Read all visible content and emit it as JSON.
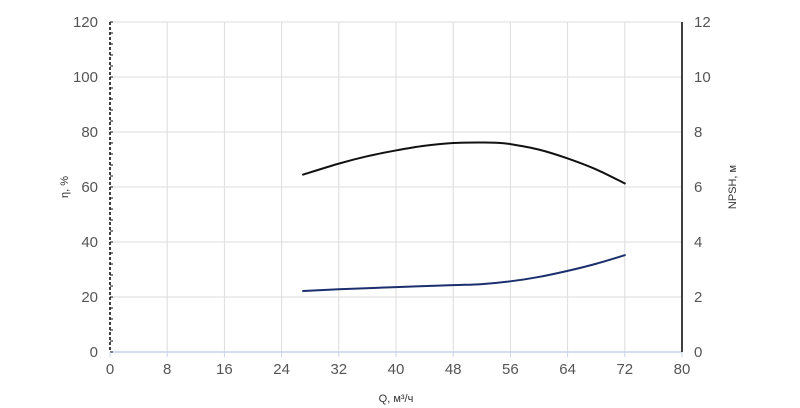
{
  "chart_data": {
    "type": "line",
    "xlabel": "Q, м³/ч",
    "ylabel_left": "η, %",
    "ylabel_right": "NPSH, м",
    "x_ticks": [
      "0",
      "8",
      "16",
      "24",
      "32",
      "40",
      "48",
      "56",
      "64",
      "72",
      "80"
    ],
    "y_left_ticks": [
      "0",
      "20",
      "40",
      "60",
      "80",
      "100",
      "120"
    ],
    "y_right_ticks": [
      "0",
      "2",
      "4",
      "6",
      "8",
      "10",
      "12"
    ],
    "xlim": [
      0,
      80
    ],
    "ylim_left": [
      0,
      120
    ],
    "ylim_right": [
      0,
      12
    ],
    "grid": true,
    "series": [
      {
        "axis": "left",
        "color": "#111111",
        "x": [
          27,
          32,
          36,
          40,
          44,
          48,
          52,
          54,
          56,
          60,
          64,
          68,
          72
        ],
        "y": [
          64.5,
          68.5,
          71.2,
          73.3,
          75.0,
          76.0,
          76.2,
          76.1,
          75.6,
          73.6,
          70.4,
          66.4,
          61.3
        ]
      },
      {
        "axis": "right",
        "color": "#1b2f6e",
        "x": [
          27,
          32,
          40,
          48,
          52,
          56,
          60,
          64,
          68,
          72
        ],
        "y": [
          2.22,
          2.28,
          2.36,
          2.43,
          2.47,
          2.57,
          2.73,
          2.95,
          3.21,
          3.52
        ]
      }
    ]
  }
}
